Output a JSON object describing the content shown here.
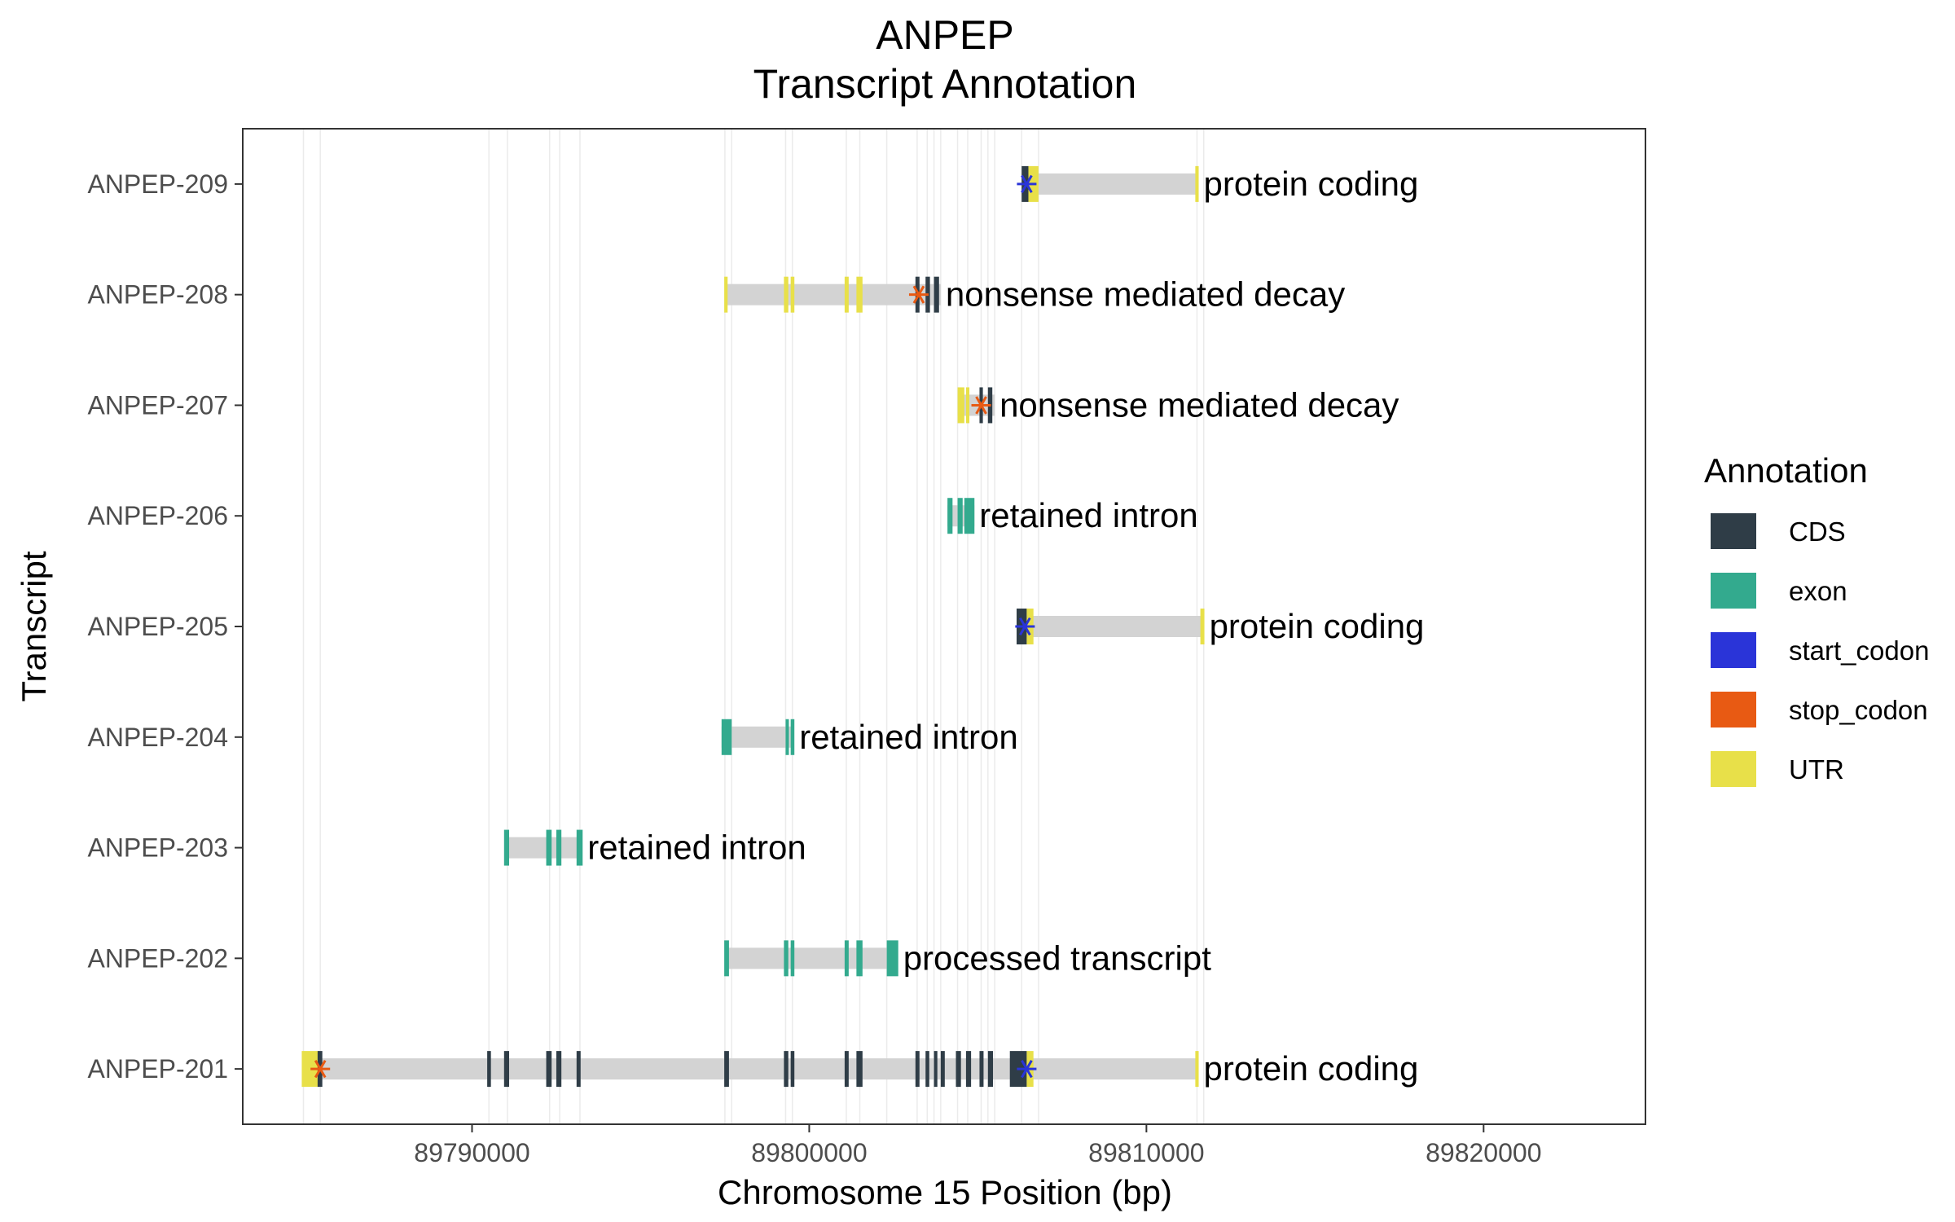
{
  "chart_data": {
    "type": "gene-track",
    "title": "ANPEP",
    "subtitle": "Transcript Annotation",
    "xlabel": "Chromosome 15 Position (bp)",
    "ylabel": "Transcript",
    "xlim": [
      89783200,
      89824800
    ],
    "xticks": [
      {
        "value": 89790000,
        "label": "89790000"
      },
      {
        "value": 89800000,
        "label": "89800000"
      },
      {
        "value": 89810000,
        "label": "89810000"
      },
      {
        "value": 89820000,
        "label": "89820000"
      }
    ],
    "grid": false,
    "exon_guides": [
      89785000,
      89785500,
      89790500,
      89791050,
      89792300,
      89792600,
      89793200,
      89797500,
      89797700,
      89799300,
      89799500,
      89801100,
      89801500,
      89802300,
      89803200,
      89803500,
      89803700,
      89803900,
      89804400,
      89804700,
      89805100,
      89805300,
      89805500,
      89806300,
      89806800,
      89811500,
      89811700
    ],
    "legend": {
      "title": "Annotation",
      "position": "right",
      "items": [
        {
          "label": "CDS",
          "color": "#2f3d47"
        },
        {
          "label": "exon",
          "color": "#33aa8e"
        },
        {
          "label": "start_codon",
          "color": "#2a34d8"
        },
        {
          "label": "stop_codon",
          "color": "#e85a13"
        },
        {
          "label": "UTR",
          "color": "#e8e049"
        }
      ]
    },
    "colors": {
      "intron": "#d3d3d3",
      "CDS": "#2f3d47",
      "exon": "#33aa8e",
      "start_codon": "#2a34d8",
      "stop_codon": "#e85a13",
      "UTR": "#e8e049"
    },
    "transcripts": [
      {
        "name": "ANPEP-209",
        "biotype": "protein coding",
        "start": 89806300,
        "end": 89811500,
        "features": [
          {
            "type": "CDS",
            "start": 89806300,
            "end": 89806500
          },
          {
            "type": "UTR",
            "start": 89806500,
            "end": 89806800
          },
          {
            "type": "UTR",
            "start": 89811450,
            "end": 89811550
          }
        ],
        "start_codon": 89806450,
        "stop_codon": null
      },
      {
        "name": "ANPEP-208",
        "biotype": "nonsense mediated decay",
        "start": 89797500,
        "end": 89803900,
        "features": [
          {
            "type": "UTR",
            "start": 89797480,
            "end": 89797580
          },
          {
            "type": "UTR",
            "start": 89799250,
            "end": 89799380
          },
          {
            "type": "UTR",
            "start": 89799450,
            "end": 89799560
          },
          {
            "type": "UTR",
            "start": 89801050,
            "end": 89801170
          },
          {
            "type": "UTR",
            "start": 89801400,
            "end": 89801580
          },
          {
            "type": "CDS",
            "start": 89803150,
            "end": 89803270
          },
          {
            "type": "CDS",
            "start": 89803450,
            "end": 89803580
          },
          {
            "type": "CDS",
            "start": 89803700,
            "end": 89803850
          }
        ],
        "start_codon": null,
        "stop_codon": 89803250
      },
      {
        "name": "ANPEP-207",
        "biotype": "nonsense mediated decay",
        "start": 89804400,
        "end": 89805500,
        "features": [
          {
            "type": "UTR",
            "start": 89804400,
            "end": 89804600
          },
          {
            "type": "UTR",
            "start": 89804650,
            "end": 89804750
          },
          {
            "type": "CDS",
            "start": 89805050,
            "end": 89805150
          },
          {
            "type": "CDS",
            "start": 89805300,
            "end": 89805430
          }
        ],
        "start_codon": null,
        "stop_codon": 89805100
      },
      {
        "name": "ANPEP-206",
        "biotype": "retained intron",
        "start": 89804100,
        "end": 89804900,
        "features": [
          {
            "type": "exon",
            "start": 89804100,
            "end": 89804250
          },
          {
            "type": "exon",
            "start": 89804400,
            "end": 89804550
          },
          {
            "type": "exon",
            "start": 89804600,
            "end": 89804900
          }
        ],
        "start_codon": null,
        "stop_codon": null
      },
      {
        "name": "ANPEP-205",
        "biotype": "protein coding",
        "start": 89806150,
        "end": 89811700,
        "features": [
          {
            "type": "CDS",
            "start": 89806150,
            "end": 89806450
          },
          {
            "type": "UTR",
            "start": 89806450,
            "end": 89806650
          },
          {
            "type": "UTR",
            "start": 89811600,
            "end": 89811720
          }
        ],
        "start_codon": 89806400,
        "stop_codon": null
      },
      {
        "name": "ANPEP-204",
        "biotype": "retained intron",
        "start": 89797400,
        "end": 89799500,
        "features": [
          {
            "type": "exon",
            "start": 89797400,
            "end": 89797700
          },
          {
            "type": "exon",
            "start": 89799300,
            "end": 89799380
          },
          {
            "type": "exon",
            "start": 89799450,
            "end": 89799560
          }
        ],
        "start_codon": null,
        "stop_codon": null
      },
      {
        "name": "ANPEP-203",
        "biotype": "retained intron",
        "start": 89791000,
        "end": 89793200,
        "features": [
          {
            "type": "exon",
            "start": 89790950,
            "end": 89791100
          },
          {
            "type": "exon",
            "start": 89792200,
            "end": 89792360
          },
          {
            "type": "exon",
            "start": 89792500,
            "end": 89792650
          },
          {
            "type": "exon",
            "start": 89793100,
            "end": 89793280
          }
        ],
        "start_codon": null,
        "stop_codon": null
      },
      {
        "name": "ANPEP-202",
        "biotype": "processed transcript",
        "start": 89797500,
        "end": 89802600,
        "features": [
          {
            "type": "exon",
            "start": 89797480,
            "end": 89797620
          },
          {
            "type": "exon",
            "start": 89799250,
            "end": 89799380
          },
          {
            "type": "exon",
            "start": 89799450,
            "end": 89799560
          },
          {
            "type": "exon",
            "start": 89801050,
            "end": 89801170
          },
          {
            "type": "exon",
            "start": 89801400,
            "end": 89801580
          },
          {
            "type": "exon",
            "start": 89802300,
            "end": 89802640
          }
        ],
        "start_codon": null,
        "stop_codon": null
      },
      {
        "name": "ANPEP-201",
        "biotype": "protein coding",
        "start": 89785000,
        "end": 89811500,
        "features": [
          {
            "type": "UTR",
            "start": 89784950,
            "end": 89785450
          },
          {
            "type": "CDS",
            "start": 89785420,
            "end": 89785560
          },
          {
            "type": "CDS",
            "start": 89790450,
            "end": 89790560
          },
          {
            "type": "CDS",
            "start": 89790950,
            "end": 89791100
          },
          {
            "type": "CDS",
            "start": 89792200,
            "end": 89792360
          },
          {
            "type": "CDS",
            "start": 89792500,
            "end": 89792650
          },
          {
            "type": "CDS",
            "start": 89793100,
            "end": 89793220
          },
          {
            "type": "CDS",
            "start": 89797480,
            "end": 89797620
          },
          {
            "type": "CDS",
            "start": 89799250,
            "end": 89799380
          },
          {
            "type": "CDS",
            "start": 89799450,
            "end": 89799560
          },
          {
            "type": "CDS",
            "start": 89801050,
            "end": 89801170
          },
          {
            "type": "CDS",
            "start": 89801400,
            "end": 89801580
          },
          {
            "type": "CDS",
            "start": 89803150,
            "end": 89803270
          },
          {
            "type": "CDS",
            "start": 89803450,
            "end": 89803560
          },
          {
            "type": "CDS",
            "start": 89803700,
            "end": 89803800
          },
          {
            "type": "CDS",
            "start": 89803900,
            "end": 89804020
          },
          {
            "type": "CDS",
            "start": 89804350,
            "end": 89804500
          },
          {
            "type": "CDS",
            "start": 89804650,
            "end": 89804800
          },
          {
            "type": "CDS",
            "start": 89805050,
            "end": 89805170
          },
          {
            "type": "CDS",
            "start": 89805300,
            "end": 89805450
          },
          {
            "type": "CDS",
            "start": 89805950,
            "end": 89806450
          },
          {
            "type": "UTR",
            "start": 89806450,
            "end": 89806650
          },
          {
            "type": "UTR",
            "start": 89811450,
            "end": 89811550
          }
        ],
        "start_codon": 89806450,
        "stop_codon": 89785500
      }
    ]
  }
}
